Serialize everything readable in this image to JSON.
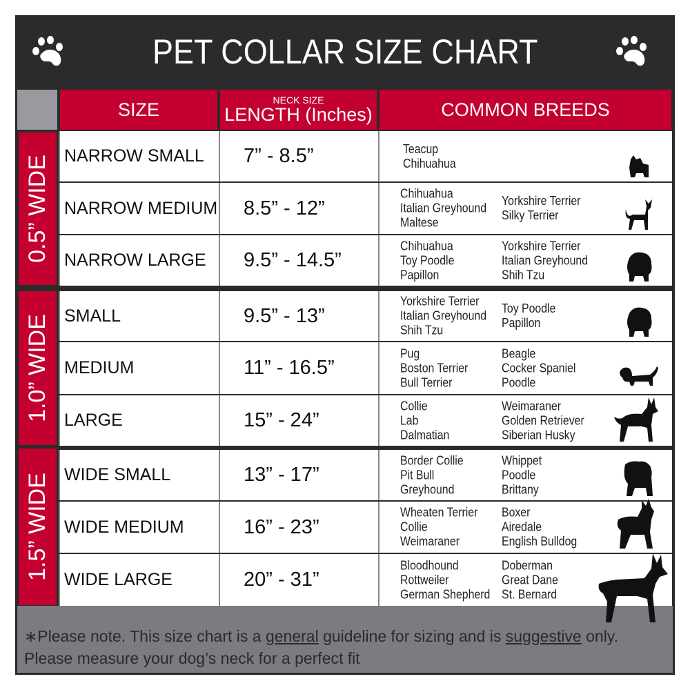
{
  "title": "PET COLLAR SIZE CHART",
  "headers": {
    "size": "SIZE",
    "neck_size": "NECK SIZE",
    "length": "LENGTH (Inches)",
    "breeds": "COMMON BREEDS"
  },
  "colors": {
    "red": "#c3002f",
    "dark": "#2b2b2b",
    "gray": "#7c7c80"
  },
  "groups": [
    {
      "label": "0.5” WIDE",
      "rows": [
        {
          "size": "NARROW SMALL",
          "length": "7” - 8.5”",
          "breeds1": [
            "Teacup",
            "Chihuahua"
          ],
          "breeds2": [],
          "icon": "yorkie-silhouette-icon"
        },
        {
          "size": "NARROW MEDIUM",
          "length": "8.5” - 12”",
          "breeds1": [
            "Chihuahua",
            "Italian Greyhound",
            "Maltese"
          ],
          "breeds2": [
            "Yorkshire Terrier",
            "Silky Terrier"
          ],
          "icon": "chihuahua-silhouette-icon"
        },
        {
          "size": "NARROW LARGE",
          "length": "9.5” - 14.5”",
          "breeds1": [
            "Chihuahua",
            "Toy Poodle",
            "Papillon"
          ],
          "breeds2": [
            "Yorkshire Terrier",
            "Italian Greyhound",
            "Shih Tzu"
          ],
          "icon": "pomeranian-silhouette-icon"
        }
      ]
    },
    {
      "label": "1.0” WIDE",
      "rows": [
        {
          "size": "SMALL",
          "length": "9.5” - 13”",
          "breeds1": [
            "Yorkshire Terrier",
            "Italian Greyhound",
            "Shih Tzu"
          ],
          "breeds2": [
            "Toy Poodle",
            "Papillon"
          ],
          "icon": "pomeranian-silhouette-icon"
        },
        {
          "size": "MEDIUM",
          "length": "11” - 16.5”",
          "breeds1": [
            "Pug",
            "Boston Terrier",
            "Bull Terrier"
          ],
          "breeds2": [
            "Beagle",
            "Cocker Spaniel",
            "Poodle"
          ],
          "icon": "spaniel-silhouette-icon"
        },
        {
          "size": "LARGE",
          "length": "15” - 24”",
          "breeds1": [
            "Collie",
            "Lab",
            "Dalmatian"
          ],
          "breeds2": [
            "Weimaraner",
            "Golden Retriever",
            "Siberian Husky"
          ],
          "icon": "shepherd-silhouette-icon"
        }
      ]
    },
    {
      "label": "1.5” WIDE",
      "rows": [
        {
          "size": "WIDE SMALL",
          "length": "13” - 17”",
          "breeds1": [
            "Border Collie",
            "Pit Bull",
            "Greyhound"
          ],
          "breeds2": [
            "Whippet",
            "Poodle",
            "Brittany"
          ],
          "icon": "bulldog-silhouette-icon"
        },
        {
          "size": "WIDE MEDIUM",
          "length": "16” - 23”",
          "breeds1": [
            "Wheaten Terrier",
            "Collie",
            "Weimaraner"
          ],
          "breeds2": [
            "Boxer",
            "Airedale",
            "English Bulldog"
          ],
          "icon": "pitbull-silhouette-icon"
        },
        {
          "size": "WIDE LARGE",
          "length": "20” - 31”",
          "breeds1": [
            "Bloodhound",
            "Rottweiler",
            "German Shepherd"
          ],
          "breeds2": [
            "Doberman",
            "Great Dane",
            "St. Bernard"
          ],
          "icon": "doberman-silhouette-icon"
        }
      ]
    }
  ],
  "footnote": {
    "part1": "∗Please note. This size chart is a ",
    "general": "general",
    "part2": " guideline for sizing and is ",
    "suggestive": "suggestive",
    "part3": " only.",
    "line2": "Please measure your dog’s neck for a perfect fit"
  }
}
